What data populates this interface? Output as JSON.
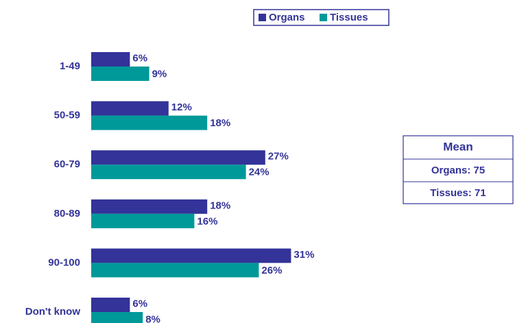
{
  "chart_data": {
    "type": "bar",
    "orientation": "horizontal",
    "categories": [
      "1-49",
      "50-59",
      "60-79",
      "80-89",
      "90-100",
      "Don't know"
    ],
    "series": [
      {
        "name": "Organs",
        "color": "#333399",
        "values": [
          6,
          12,
          27,
          18,
          31,
          6
        ],
        "value_labels": [
          "6%",
          "12%",
          "27%",
          "18%",
          "31%",
          "6%"
        ]
      },
      {
        "name": "Tissues",
        "color": "#009999",
        "values": [
          9,
          18,
          24,
          16,
          26,
          8
        ],
        "value_labels": [
          "9%",
          "18%",
          "24%",
          "16%",
          "26%",
          "8%"
        ]
      }
    ],
    "legend": "top",
    "annotation": {
      "title": "Mean",
      "lines": [
        "Organs: 75",
        "Tissues: 71"
      ]
    }
  }
}
